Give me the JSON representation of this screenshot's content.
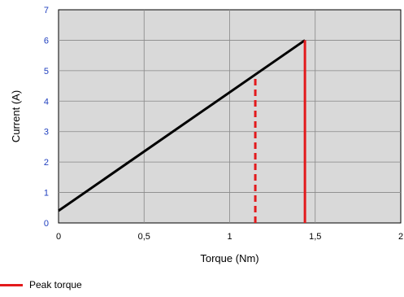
{
  "chart_data": {
    "type": "line",
    "xlabel": "Torque (Nm)",
    "ylabel": "Current (A)",
    "xlim": [
      0,
      2
    ],
    "ylim": [
      0,
      7
    ],
    "x_ticks": [
      "0",
      "0,5",
      "1",
      "1,5",
      "2"
    ],
    "y_ticks": [
      "0",
      "1",
      "2",
      "3",
      "4",
      "5",
      "6",
      "7"
    ],
    "grid": true,
    "series": [
      {
        "name": "",
        "x": [
          0,
          1.44
        ],
        "y": [
          0.4,
          6.0
        ],
        "color": "#000000",
        "style": "solid"
      },
      {
        "name": "",
        "x": [
          1.15,
          1.15
        ],
        "y": [
          0,
          4.85
        ],
        "color": "#e31a1c",
        "style": "dashed"
      },
      {
        "name": "Peak torque",
        "x": [
          1.44,
          1.44
        ],
        "y": [
          0,
          6.0
        ],
        "color": "#e31a1c",
        "style": "solid"
      }
    ],
    "legend": {
      "position": "bottom-left",
      "label": "Peak torque"
    },
    "colors": {
      "plot_bg": "#d9d9d9",
      "tick_labels": "#1f3fbf",
      "accent": "#e31a1c"
    }
  }
}
